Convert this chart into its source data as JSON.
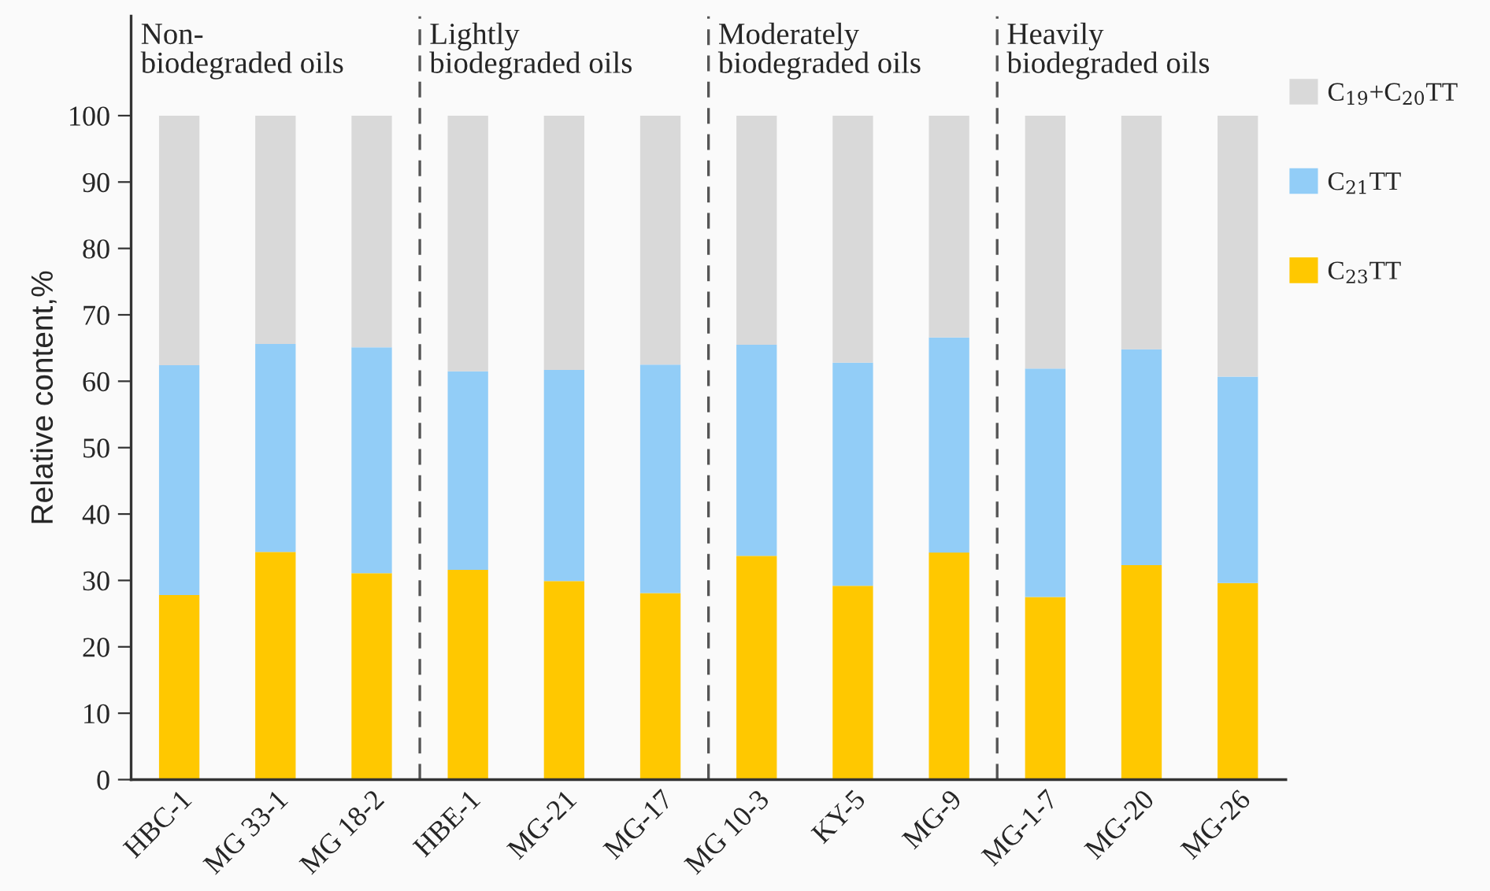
{
  "chart_data": {
    "type": "bar",
    "stacked": true,
    "ylabel": "Relative content,%",
    "categories": [
      "HBC-1",
      "MG 33-1",
      "MG 18-2",
      "HBE-1",
      "MG-21",
      "MG-17",
      "MG 10-3",
      "KY-5",
      "MG-9",
      "MG-1-7",
      "MG-20",
      "MG-26"
    ],
    "series": [
      {
        "name": "C$_{23}$TT",
        "color": "#ffc800",
        "values": [
          27.8,
          34.3,
          31.1,
          31.6,
          29.9,
          28.1,
          33.7,
          29.2,
          34.2,
          27.5,
          32.3,
          29.6
        ]
      },
      {
        "name": "C$_{21}$TT",
        "color": "#92cdf7",
        "values": [
          34.6,
          31.3,
          34.0,
          29.9,
          31.8,
          34.4,
          31.8,
          33.6,
          32.4,
          34.4,
          32.5,
          31.1
        ]
      },
      {
        "name": "C$_{19}$+C$_{20}$TT",
        "color": "#d9d9d9",
        "values": [
          37.6,
          34.4,
          34.9,
          38.5,
          38.3,
          37.5,
          34.5,
          37.2,
          33.4,
          38.1,
          35.2,
          39.3
        ]
      }
    ],
    "ylim": [
      0,
      115
    ],
    "yticks": [
      0,
      10,
      20,
      30,
      40,
      50,
      60,
      70,
      80,
      90,
      100
    ],
    "annotations": [
      "Non-\nbiodegraded oils",
      "Lightly\nbiodegraded oils",
      "Moderately\nbiodegraded oils",
      "Heavily\nbiodegraded oils"
    ],
    "legend": "right",
    "grid": false
  }
}
